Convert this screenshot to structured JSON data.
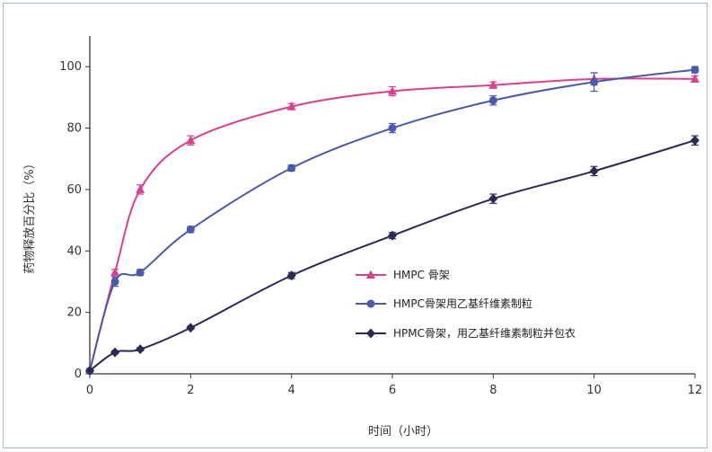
{
  "chart_data": {
    "type": "line",
    "xlabel": "时间（小时）",
    "ylabel": "药物释放百分比（%）",
    "xlim": [
      0,
      12
    ],
    "ylim": [
      0,
      110
    ],
    "xticks": [
      0,
      2,
      4,
      6,
      8,
      10,
      12
    ],
    "yticks": [
      0,
      20,
      40,
      60,
      80,
      100
    ],
    "x_tick_labels": [
      "0",
      "2",
      "4",
      "6",
      "8",
      "10",
      "12"
    ],
    "y_tick_labels": [
      "0",
      "20",
      "40",
      "60",
      "80",
      "100"
    ],
    "grid": false,
    "legend_position": "lower-right",
    "series": [
      {
        "name": "HMPC 骨架",
        "color": "#d9408f",
        "marker": "triangle",
        "x": [
          0,
          0.5,
          1,
          2,
          4,
          6,
          8,
          10,
          12
        ],
        "y": [
          1,
          33,
          60,
          76,
          87,
          92,
          94,
          96,
          96
        ],
        "err": [
          0,
          1,
          1.5,
          1.5,
          1,
          1.5,
          1,
          2,
          1
        ]
      },
      {
        "name": "HMPC骨架用乙基纤维素制粒",
        "color": "#4a5aa8",
        "marker": "circle",
        "x": [
          0,
          0.5,
          1,
          2,
          4,
          6,
          8,
          10,
          12
        ],
        "y": [
          1,
          30,
          33,
          47,
          67,
          80,
          89,
          95,
          99
        ],
        "err": [
          0,
          1.5,
          1,
          1,
          1,
          1.5,
          1.5,
          3,
          1
        ]
      },
      {
        "name": "HPMC骨架，用乙基纤维素制粒并包衣",
        "color": "#2a2a55",
        "marker": "diamond",
        "x": [
          0,
          0.5,
          1,
          2,
          4,
          6,
          8,
          10,
          12
        ],
        "y": [
          1,
          7,
          8,
          15,
          32,
          45,
          57,
          66,
          76
        ],
        "err": [
          0,
          0.5,
          0.5,
          0.5,
          1,
          1,
          1.5,
          1.5,
          1.5
        ]
      }
    ]
  }
}
